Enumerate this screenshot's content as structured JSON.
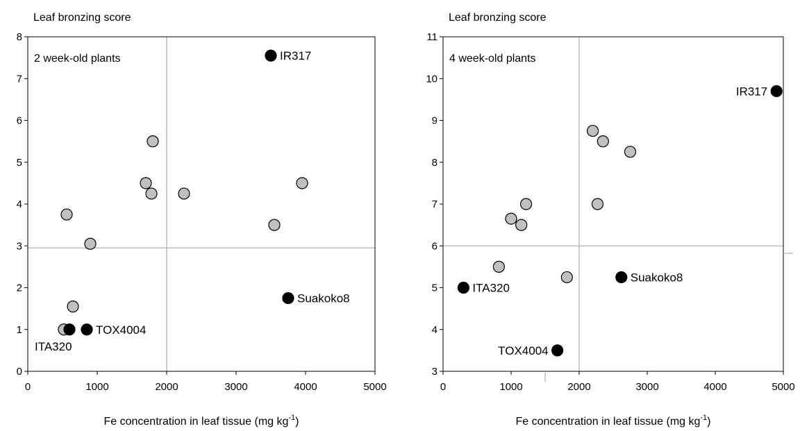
{
  "chart_data": [
    {
      "type": "scatter",
      "title": "",
      "panel_label": "2 week-old plants",
      "ylabel": "Leaf bronzing score",
      "xlabel": "Fe concentration in leaf tissue (mg kg",
      "xlabel_sup": "-1",
      "xlabel_suffix": ")",
      "xlim": [
        0,
        5000
      ],
      "ylim": [
        0,
        8
      ],
      "xticks": [
        "0",
        "1000",
        "2000",
        "3000",
        "4000",
        "5000"
      ],
      "yticks": [
        "0",
        "1",
        "2",
        "3",
        "4",
        "5",
        "6",
        "7",
        "8"
      ],
      "reference_lines": {
        "x": 2000,
        "y": 2.95
      },
      "series": [
        {
          "color": "#c0c0c0",
          "points": [
            {
              "x": 520,
              "y": 1.0
            },
            {
              "x": 650,
              "y": 1.55
            },
            {
              "x": 560,
              "y": 3.75
            },
            {
              "x": 900,
              "y": 3.05
            },
            {
              "x": 1700,
              "y": 4.5
            },
            {
              "x": 1780,
              "y": 4.25
            },
            {
              "x": 1800,
              "y": 5.5
            },
            {
              "x": 2250,
              "y": 4.25
            },
            {
              "x": 3550,
              "y": 3.5
            },
            {
              "x": 3950,
              "y": 4.5
            }
          ]
        },
        {
          "color": "#000000",
          "points": [
            {
              "x": 600,
              "y": 1.0,
              "label": "ITA320",
              "label_pos": "below-left"
            },
            {
              "x": 850,
              "y": 1.0,
              "label": "TOX4004",
              "label_pos": "right"
            },
            {
              "x": 3500,
              "y": 7.55,
              "label": "IR317",
              "label_pos": "right"
            },
            {
              "x": 3750,
              "y": 1.75,
              "label": "Suakoko8",
              "label_pos": "right"
            }
          ]
        }
      ]
    },
    {
      "type": "scatter",
      "title": "",
      "panel_label": "4 week-old plants",
      "ylabel": "Leaf bronzing score",
      "xlabel": "Fe concentration in leaf tissue (mg kg",
      "xlabel_sup": "-1",
      "xlabel_suffix": ")",
      "xlim": [
        0,
        5000
      ],
      "ylim": [
        3,
        11
      ],
      "xticks": [
        "0",
        "1000",
        "2000",
        "3000",
        "4000",
        "5000"
      ],
      "yticks": [
        "3",
        "4",
        "5",
        "6",
        "7",
        "8",
        "9",
        "10",
        "11"
      ],
      "reference_lines": {
        "x": 2000,
        "y": 6.0
      },
      "series": [
        {
          "color": "#c0c0c0",
          "points": [
            {
              "x": 820,
              "y": 5.5
            },
            {
              "x": 1000,
              "y": 6.65
            },
            {
              "x": 1150,
              "y": 6.5
            },
            {
              "x": 1220,
              "y": 7.0
            },
            {
              "x": 1820,
              "y": 5.25
            },
            {
              "x": 2200,
              "y": 8.75
            },
            {
              "x": 2350,
              "y": 8.5
            },
            {
              "x": 2270,
              "y": 7.0
            },
            {
              "x": 2750,
              "y": 8.25
            }
          ]
        },
        {
          "color": "#000000",
          "points": [
            {
              "x": 300,
              "y": 5.0,
              "label": "ITA320",
              "label_pos": "right"
            },
            {
              "x": 1680,
              "y": 3.5,
              "label": "TOX4004",
              "label_pos": "left"
            },
            {
              "x": 2620,
              "y": 5.25,
              "label": "Suakoko8",
              "label_pos": "right"
            },
            {
              "x": 4900,
              "y": 9.7,
              "label": "IR317",
              "label_pos": "left"
            }
          ]
        }
      ]
    }
  ]
}
